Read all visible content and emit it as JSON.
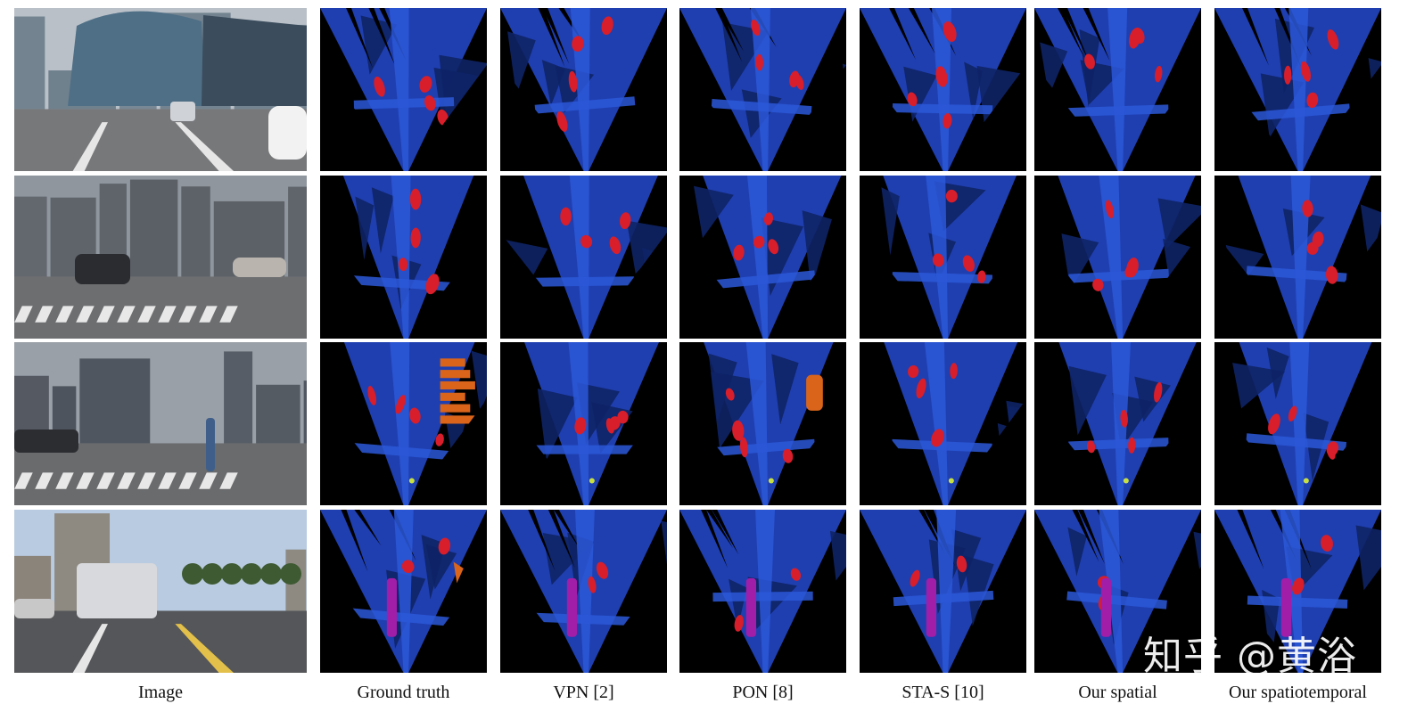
{
  "columns": [
    {
      "label": "Image"
    },
    {
      "label": "Ground truth"
    },
    {
      "label": "VPN [2]"
    },
    {
      "label": "PON [8]"
    },
    {
      "label": "STA-S [10]"
    },
    {
      "label": "Our spatial"
    },
    {
      "label": "Our spatiotemporal"
    }
  ],
  "rows": [
    {
      "scene": "city-intersection-glass-building"
    },
    {
      "scene": "intersection-with-cars"
    },
    {
      "scene": "crosswalk-pedestrian"
    },
    {
      "scene": "street-with-bus"
    }
  ],
  "colors": {
    "drivable": "#1f3fb0",
    "lane": "#2b58d8",
    "background": "#000000",
    "dark_region": "#0e2466",
    "car": "#d81e2a",
    "bus": "#a01ea8",
    "construction": "#d9641a",
    "pedestrian": "#c8e040"
  },
  "watermark": "知乎 @黄浴"
}
